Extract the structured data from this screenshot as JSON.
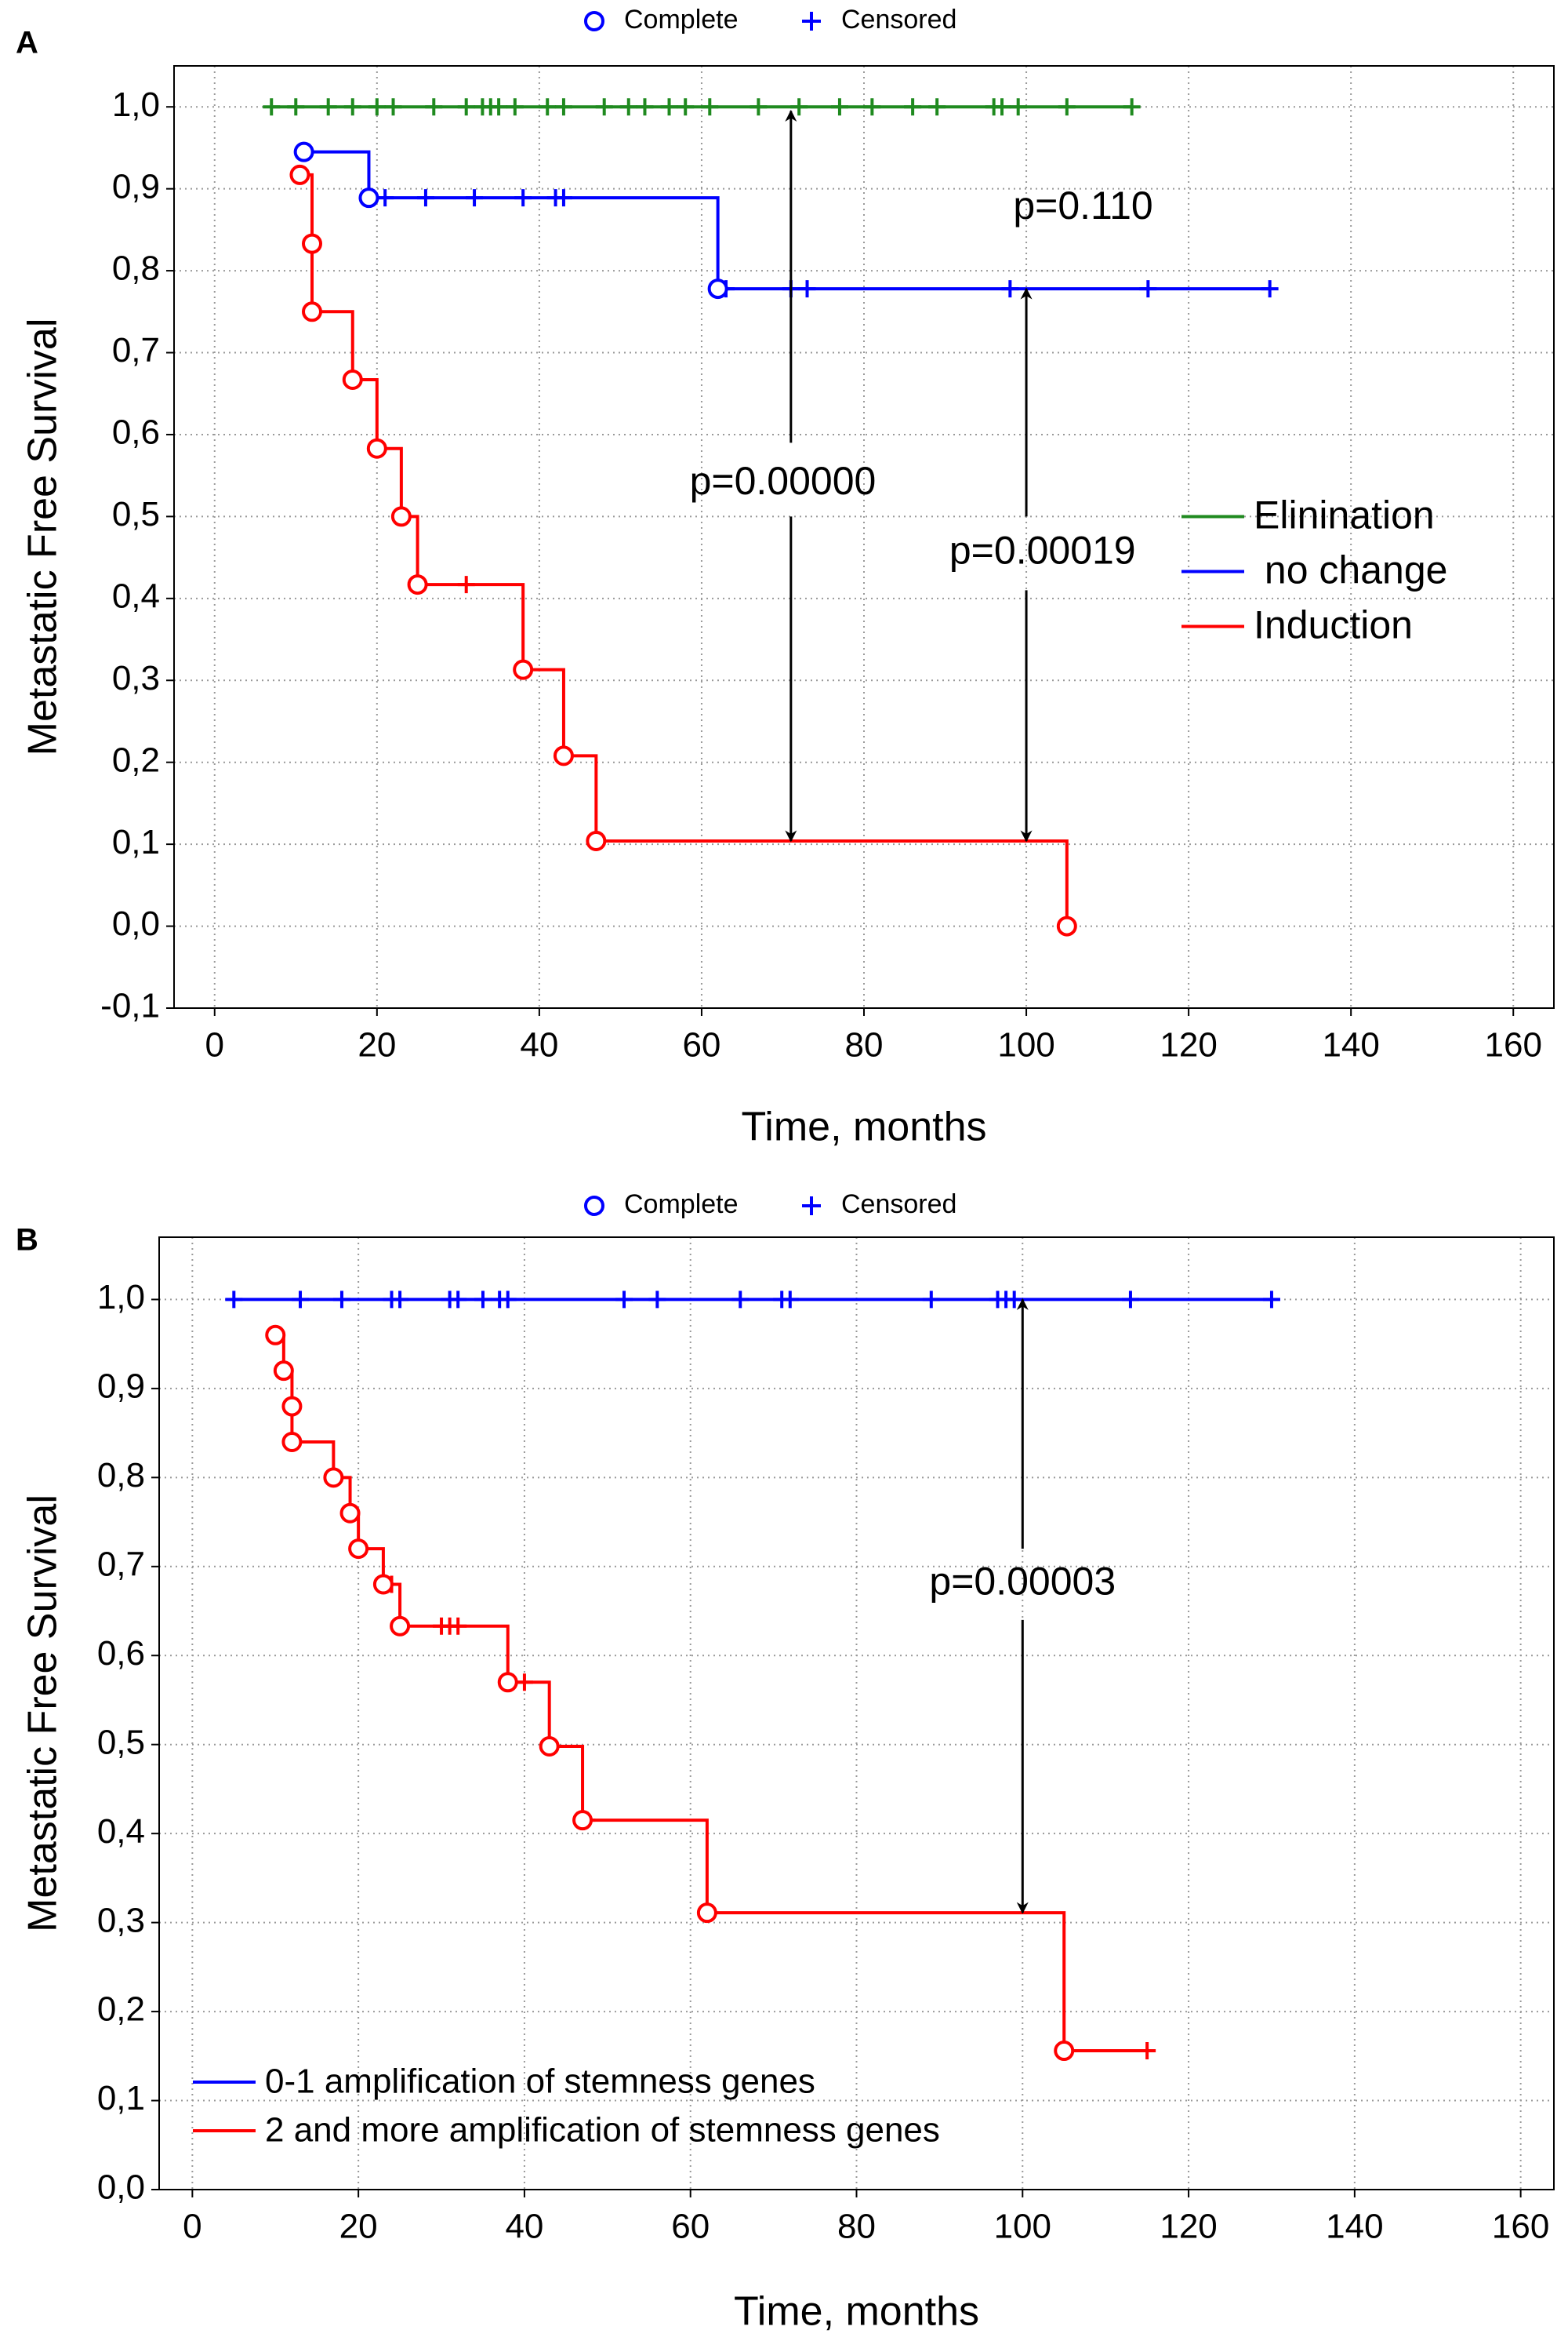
{
  "chart_data": [
    {
      "type": "line",
      "panel": "A",
      "marker_legend": [
        "Complete",
        "Censored"
      ],
      "x_label": "Time, months",
      "y_label": "Metastatic Free Survival",
      "xlim": [
        -5,
        165
      ],
      "ylim": [
        -0.1,
        1.05
      ],
      "xticks": [
        0,
        20,
        40,
        60,
        80,
        100,
        120,
        140,
        160
      ],
      "yticks": [
        {
          "value": 1.0,
          "label": "1,0"
        },
        {
          "value": 0.9,
          "label": "0,9"
        },
        {
          "value": 0.8,
          "label": "0,8"
        },
        {
          "value": 0.7,
          "label": "0,7"
        },
        {
          "value": 0.6,
          "label": "0,6"
        },
        {
          "value": 0.5,
          "label": "0,5"
        },
        {
          "value": 0.4,
          "label": "0,4"
        },
        {
          "value": 0.3,
          "label": "0,3"
        },
        {
          "value": 0.2,
          "label": "0,2"
        },
        {
          "value": 0.1,
          "label": "0,1"
        },
        {
          "value": 0.0,
          "label": "0,0"
        },
        {
          "value": -0.1,
          "label": "-0,1"
        }
      ],
      "grid": true,
      "legend": "right",
      "series": [
        {
          "name": "Elinination",
          "color": "#1f8a1f",
          "x": [
            7,
            113
          ],
          "values": [
            1.0,
            1.0
          ],
          "complete": {
            "x": [],
            "y": []
          },
          "censored": {
            "x": [
              7,
              10,
              14,
              17,
              20,
              22,
              27,
              31,
              33,
              34,
              35,
              37,
              41,
              43,
              48,
              51,
              53,
              56,
              58,
              61,
              67,
              72,
              77,
              81,
              86,
              89,
              96,
              97,
              99,
              105,
              113
            ],
            "y": [
              1,
              1,
              1,
              1,
              1,
              1,
              1,
              1,
              1,
              1,
              1,
              1,
              1,
              1,
              1,
              1,
              1,
              1,
              1,
              1,
              1,
              1,
              1,
              1,
              1,
              1,
              1,
              1,
              1,
              1,
              1
            ]
          }
        },
        {
          "name": " no change",
          "color": "#0000ff",
          "x": [
            11,
            19,
            62,
            130
          ],
          "values": [
            0.945,
            0.889,
            0.778,
            0.778
          ],
          "complete": {
            "x": [
              11,
              19,
              62
            ],
            "y": [
              0.945,
              0.889,
              0.778
            ]
          },
          "censored": {
            "x": [
              21,
              26,
              32,
              38,
              42,
              43,
              63,
              71,
              73,
              98,
              115,
              130
            ],
            "y": [
              0.889,
              0.889,
              0.889,
              0.889,
              0.889,
              0.889,
              0.778,
              0.778,
              0.778,
              0.778,
              0.778,
              0.778
            ]
          }
        },
        {
          "name": "Induction",
          "color": "#ff0000",
          "x": [
            10.5,
            12,
            17,
            20,
            23,
            25,
            38,
            43,
            47,
            105
          ],
          "values": [
            0.917,
            0.75,
            0.667,
            0.583,
            0.5,
            0.417,
            0.313,
            0.208,
            0.104,
            0.0
          ],
          "complete": {
            "x": [
              10.5,
              12,
              12,
              17,
              20,
              23,
              25,
              38,
              43,
              47,
              105
            ],
            "y": [
              0.917,
              0.833,
              0.75,
              0.667,
              0.583,
              0.5,
              0.417,
              0.313,
              0.208,
              0.104,
              0.0
            ]
          },
          "censored": {
            "x": [
              31
            ],
            "y": [
              0.417
            ]
          }
        }
      ],
      "annotations": [
        {
          "text": "p=0.110",
          "x": 107,
          "y": 0.876
        },
        {
          "text": "p=0.00000",
          "x": 70,
          "y": 0.54
        },
        {
          "text": "p=0.00019",
          "x": 102,
          "y": 0.455
        }
      ],
      "arrows": [
        {
          "x": 71,
          "from": 0.59,
          "to": 0.995
        },
        {
          "x": 71,
          "from": 0.5,
          "to": 0.104
        },
        {
          "x": 100,
          "from": 0.5,
          "to": 0.778
        },
        {
          "x": 100,
          "from": 0.41,
          "to": 0.104
        }
      ]
    },
    {
      "type": "line",
      "panel": "B",
      "marker_legend": [
        "Complete",
        "Censored"
      ],
      "x_label": "Time, months",
      "y_label": "Metastatic Free Survival",
      "xlim": [
        -4,
        164
      ],
      "ylim": [
        0,
        1.07
      ],
      "xticks": [
        0,
        20,
        40,
        60,
        80,
        100,
        120,
        140,
        160
      ],
      "yticks": [
        {
          "value": 1.0,
          "label": "1,0"
        },
        {
          "value": 0.9,
          "label": "0,9"
        },
        {
          "value": 0.8,
          "label": "0,8"
        },
        {
          "value": 0.7,
          "label": "0,7"
        },
        {
          "value": 0.6,
          "label": "0,6"
        },
        {
          "value": 0.5,
          "label": "0,5"
        },
        {
          "value": 0.4,
          "label": "0,4"
        },
        {
          "value": 0.3,
          "label": "0,3"
        },
        {
          "value": 0.2,
          "label": "0,2"
        },
        {
          "value": 0.1,
          "label": "0,1"
        },
        {
          "value": 0.0,
          "label": "0,0"
        }
      ],
      "grid": true,
      "legend": "lower left",
      "series": [
        {
          "name": "0-1 amplification of stemness genes",
          "color": "#0000ff",
          "x": [
            5,
            130
          ],
          "values": [
            1.0,
            1.0
          ],
          "complete": {
            "x": [],
            "y": []
          },
          "censored": {
            "x": [
              5,
              13,
              18,
              24,
              25,
              31,
              32,
              35,
              37,
              38,
              52,
              56,
              66,
              71,
              72,
              89,
              97,
              98,
              99,
              113,
              130
            ],
            "y": [
              1,
              1,
              1,
              1,
              1,
              1,
              1,
              1,
              1,
              1,
              1,
              1,
              1,
              1,
              1,
              1,
              1,
              1,
              1,
              1,
              1
            ]
          }
        },
        {
          "name": "2 and more amplification of stemness genes",
          "color": "#ff0000",
          "x": [
            10,
            11,
            12,
            17,
            19,
            20,
            23,
            25,
            38,
            43,
            47,
            62,
            105,
            115
          ],
          "values": [
            0.96,
            0.92,
            0.84,
            0.8,
            0.76,
            0.72,
            0.68,
            0.633,
            0.57,
            0.498,
            0.415,
            0.311,
            0.156,
            0.156
          ],
          "complete": {
            "x": [
              10,
              11,
              12,
              12,
              17,
              19,
              20,
              23,
              25,
              38,
              43,
              47,
              62,
              105
            ],
            "y": [
              0.96,
              0.92,
              0.88,
              0.84,
              0.8,
              0.76,
              0.72,
              0.68,
              0.633,
              0.57,
              0.498,
              0.415,
              0.311,
              0.156
            ]
          },
          "censored": {
            "x": [
              24,
              30,
              31,
              32,
              40,
              47.5,
              115
            ],
            "y": [
              0.68,
              0.633,
              0.633,
              0.633,
              0.57,
              0.415,
              0.156
            ]
          }
        }
      ],
      "annotations": [
        {
          "text": "p=0.00003",
          "x": 100,
          "y": 0.68
        }
      ],
      "arrows": [
        {
          "x": 100,
          "from": 0.72,
          "to": 1.0
        },
        {
          "x": 100,
          "from": 0.64,
          "to": 0.311
        }
      ]
    }
  ]
}
